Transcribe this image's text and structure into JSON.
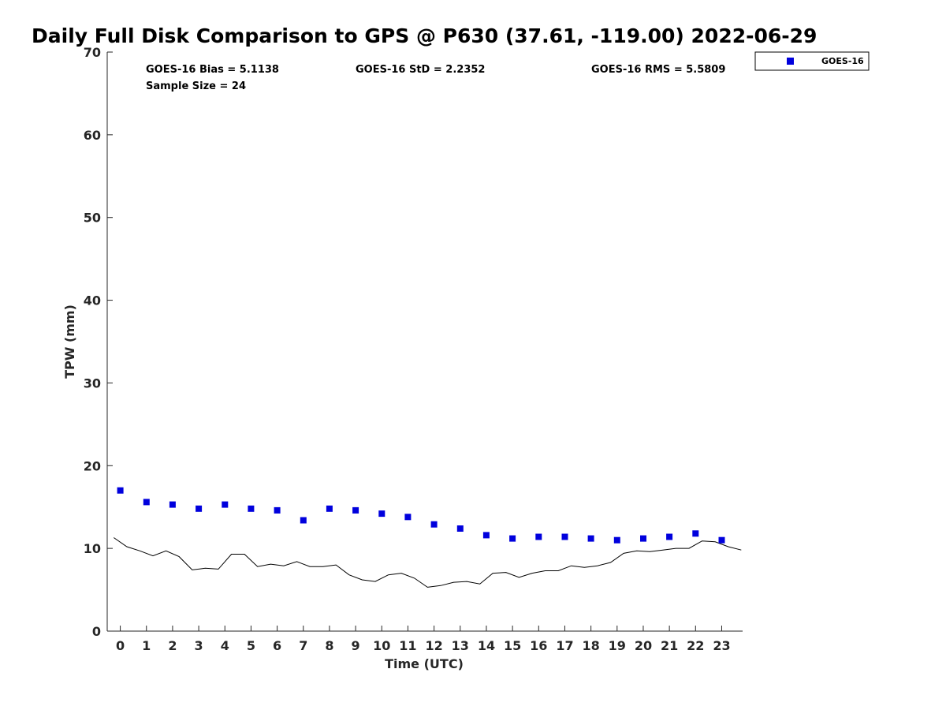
{
  "chart_data": {
    "type": "scatter",
    "title": "Daily Full Disk Comparison to GPS @ P630 (37.61, -119.00) 2022-06-29",
    "xlabel": "Time (UTC)",
    "ylabel": "TPW (mm)",
    "xlim": [
      -0.5,
      23.8
    ],
    "ylim": [
      0,
      70
    ],
    "x_ticks": [
      0,
      1,
      2,
      3,
      4,
      5,
      6,
      7,
      8,
      9,
      10,
      11,
      12,
      13,
      14,
      15,
      16,
      17,
      18,
      19,
      20,
      21,
      22,
      23
    ],
    "y_ticks": [
      0,
      10,
      20,
      30,
      40,
      50,
      60,
      70
    ],
    "grid": false,
    "legend_position": "top-right-outside",
    "stats": {
      "bias": "GOES-16 Bias = 5.1138",
      "std": "GOES-16 StD = 2.2352",
      "rms": "GOES-16 RMS = 5.5809",
      "sample": "Sample Size = 24"
    },
    "series": [
      {
        "name": "GOES-16",
        "kind": "scatter",
        "marker": "square",
        "color": "#0000dd",
        "x": [
          0,
          1,
          2,
          3,
          4,
          5,
          6,
          7,
          8,
          9,
          10,
          11,
          12,
          13,
          14,
          15,
          16,
          17,
          18,
          19,
          20,
          21,
          22,
          23
        ],
        "y": [
          17.0,
          15.6,
          15.3,
          14.8,
          15.3,
          14.8,
          14.6,
          13.4,
          14.8,
          14.6,
          14.2,
          13.8,
          12.9,
          12.4,
          11.6,
          11.2,
          11.4,
          11.4,
          11.2,
          11.0,
          11.2,
          11.4,
          11.8,
          11.0
        ]
      },
      {
        "kind": "line",
        "color": "#000000",
        "x": [
          -0.25,
          0.25,
          0.75,
          1.25,
          1.75,
          2.25,
          2.75,
          3.25,
          3.75,
          4.25,
          4.75,
          5.25,
          5.75,
          6.25,
          6.75,
          7.25,
          7.75,
          8.25,
          8.75,
          9.25,
          9.75,
          10.25,
          10.75,
          11.25,
          11.75,
          12.25,
          12.75,
          13.25,
          13.75,
          14.25,
          14.75,
          15.25,
          15.75,
          16.25,
          16.75,
          17.25,
          17.75,
          18.25,
          18.75,
          19.25,
          19.75,
          20.25,
          20.75,
          21.25,
          21.75,
          22.25,
          22.75,
          23.25,
          23.75
        ],
        "y": [
          11.3,
          10.2,
          9.7,
          9.1,
          9.7,
          9.0,
          7.4,
          7.6,
          7.5,
          9.3,
          9.3,
          7.8,
          8.1,
          7.9,
          8.4,
          7.8,
          7.8,
          8.0,
          6.8,
          6.2,
          6.0,
          6.8,
          7.0,
          6.4,
          5.3,
          5.5,
          5.9,
          6.0,
          5.7,
          7.0,
          7.1,
          6.5,
          7.0,
          7.3,
          7.3,
          7.9,
          7.7,
          7.9,
          8.3,
          9.4,
          9.7,
          9.6,
          9.8,
          10.0,
          10.0,
          10.9,
          10.8,
          10.2,
          9.8
        ]
      }
    ]
  }
}
